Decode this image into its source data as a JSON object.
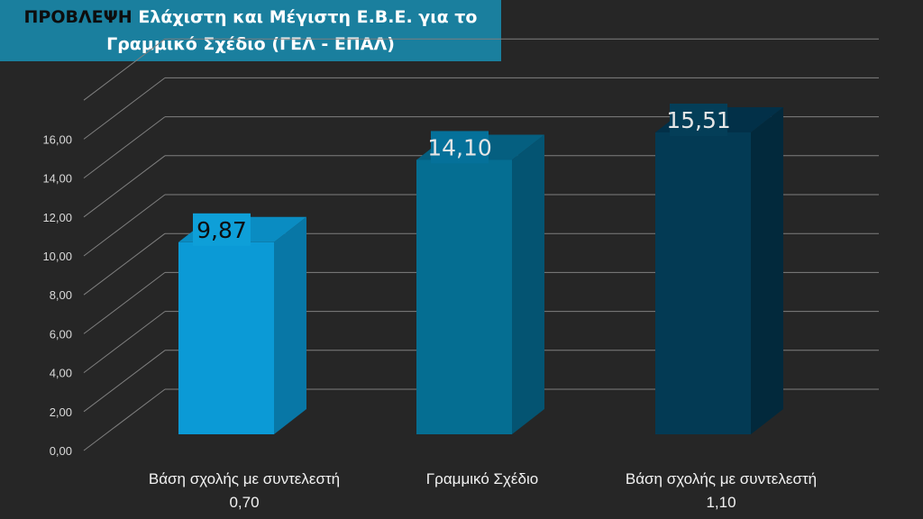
{
  "slide": {
    "title_prefix": "ΠΡΟΒΛΕΨΗ",
    "title_line1": "Ελάχιστη και Μέγιστη Ε.Β.Ε. για το",
    "title_line2": "Γραμμικό Σχέδιο (ΓΕΛ - ΕΠΑΛ)"
  },
  "chart_data": {
    "type": "bar",
    "title": "",
    "xlabel": "",
    "ylabel": "",
    "ylim": [
      0,
      18
    ],
    "yticks": [
      0,
      2,
      4,
      6,
      8,
      10,
      12,
      14,
      16
    ],
    "tick_labels": [
      "0,00",
      "2,00",
      "4,00",
      "6,00",
      "8,00",
      "10,00",
      "12,00",
      "14,00",
      "16,00"
    ],
    "grid": true,
    "categories": [
      [
        "Βάση σχολής με συντελεστή",
        "0,70"
      ],
      [
        "Γραμμικό Σχέδιο"
      ],
      [
        "Βάση σχολής με συντελεστή",
        "1,10"
      ]
    ],
    "values": [
      9.87,
      14.1,
      15.51
    ],
    "data_labels": [
      "9,87",
      "14,10",
      "15,51"
    ],
    "colors": {
      "bar_fronts": [
        "#0B9AD6",
        "#056E92",
        "#033A54"
      ],
      "bar_sides": [
        "#0877A6",
        "#045472",
        "#02293C"
      ],
      "bar_tops": [
        "#0A8CC2",
        "#055F80",
        "#023048"
      ],
      "label_boxes": [
        "#0E9FD8",
        "#05719A",
        "#043E58"
      ],
      "label_text": [
        "#0d0d0d",
        "#e6e6e6",
        "#e6e6e6"
      ],
      "grid": "#7f7f7f",
      "axis_text": "#d9d9d9",
      "category_text": "#f2f2f2",
      "title_bg": "#1A7F9E"
    }
  }
}
